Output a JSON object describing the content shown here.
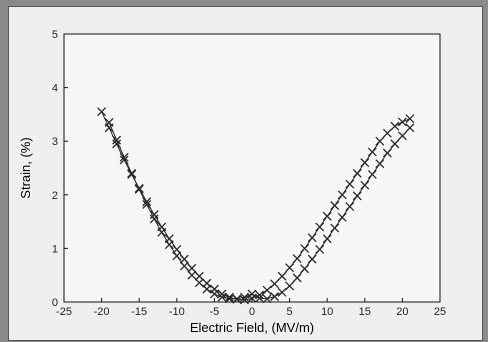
{
  "chart_data": {
    "type": "scatter",
    "title": "",
    "xlabel": "Electric Field, (MV/m)",
    "ylabel": "Strain, (%)",
    "xlim": [
      -25,
      25
    ],
    "ylim": [
      0,
      5
    ],
    "xticks": [
      -25,
      -20,
      -15,
      -10,
      -5,
      0,
      5,
      10,
      15,
      20,
      25
    ],
    "yticks": [
      0,
      1,
      2,
      3,
      4,
      5
    ],
    "xtick_labels": [
      "-25",
      "-20",
      "-15",
      "-10",
      "-5",
      "0",
      "5",
      "10",
      "15",
      "20",
      "25"
    ],
    "ytick_labels": [
      "0",
      "1",
      "2",
      "3",
      "4",
      "5"
    ],
    "grid": false,
    "legend": "none",
    "marker": "x",
    "color": "#2a2a2a",
    "series": [
      {
        "x": [
          -20,
          -19,
          -18,
          -17,
          -16,
          -15,
          -14,
          -13,
          -12,
          -11,
          -10,
          -9,
          -8,
          -7,
          -6,
          -5,
          -4,
          -3,
          -2,
          -1,
          0,
          1,
          2,
          3,
          4,
          5,
          6,
          7,
          8,
          9,
          10,
          11,
          12,
          13,
          14,
          15,
          16,
          17,
          18,
          19,
          20,
          21
        ],
        "y": [
          3.55,
          3.25,
          2.95,
          2.65,
          2.38,
          2.12,
          1.87,
          1.63,
          1.4,
          1.18,
          0.98,
          0.8,
          0.63,
          0.48,
          0.35,
          0.24,
          0.15,
          0.09,
          0.05,
          0.04,
          0.07,
          0.13,
          0.22,
          0.34,
          0.48,
          0.64,
          0.81,
          1.0,
          1.2,
          1.4,
          1.6,
          1.8,
          2.0,
          2.2,
          2.4,
          2.6,
          2.8,
          3.0,
          3.15,
          3.28,
          3.36,
          3.42
        ]
      },
      {
        "x": [
          -19,
          -18,
          -17,
          -16,
          -15,
          -14,
          -13,
          -12,
          -11,
          -10,
          -9,
          -8,
          -7,
          -6,
          -5,
          -4,
          -3,
          -2,
          -1,
          0,
          1,
          2,
          3,
          4,
          5,
          6,
          7,
          8,
          9,
          10,
          11,
          12,
          13,
          14,
          15,
          16,
          17,
          18,
          19,
          20,
          21
        ],
        "y": [
          3.35,
          3.02,
          2.7,
          2.4,
          2.1,
          1.82,
          1.55,
          1.3,
          1.07,
          0.86,
          0.67,
          0.5,
          0.36,
          0.24,
          0.15,
          0.09,
          0.06,
          0.06,
          0.09,
          0.15,
          0.07,
          0.06,
          0.1,
          0.18,
          0.3,
          0.45,
          0.62,
          0.8,
          0.98,
          1.18,
          1.38,
          1.58,
          1.78,
          1.98,
          2.18,
          2.38,
          2.58,
          2.78,
          2.95,
          3.1,
          3.25
        ]
      }
    ]
  }
}
